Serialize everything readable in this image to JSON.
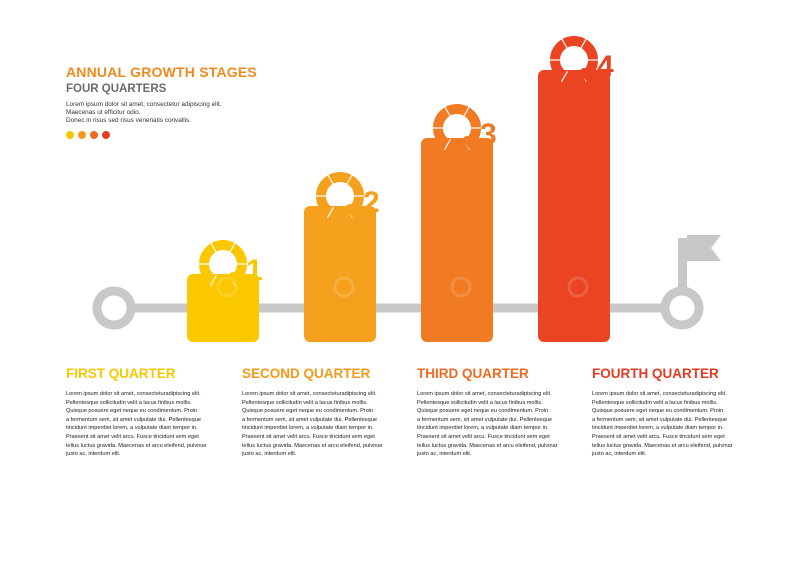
{
  "header": {
    "title": "ANNUAL GROWTH STAGES",
    "subtitle": "FOUR QUARTERS",
    "intro_lines": [
      "Lorem ipsum dolor sit amet, consectetur adipiscing elit.",
      "Maecenas ut efficitur odio.",
      "Donec in risus sed risus venenatis convallis."
    ],
    "dot_colors": [
      "#f6c800",
      "#f39a1c",
      "#ef6b23",
      "#e53a23"
    ]
  },
  "chart_data": {
    "type": "bar",
    "title": "ANNUAL GROWTH STAGES",
    "subtitle": "FOUR QUARTERS",
    "categories": [
      "Q1",
      "Q2",
      "Q3",
      "Q4"
    ],
    "values": [
      1,
      2,
      3,
      4
    ],
    "colors": [
      "#fbc800",
      "#f6a11e",
      "#f07b22",
      "#ea4423"
    ],
    "bar_labels": [
      {
        "letter": "Q",
        "number": "1"
      },
      {
        "letter": "Q",
        "number": "2"
      },
      {
        "letter": "Q",
        "number": "3"
      },
      {
        "letter": "Q",
        "number": "4"
      }
    ],
    "xlabel": "",
    "ylabel": "",
    "grid": false,
    "legend": "none",
    "timeline_color": "#c8c8c8"
  },
  "quarters": [
    {
      "title": "FIRST QUARTER",
      "color": "#f6c800",
      "lines": [
        "Lorem ipsum dolor sit amet, consecteturadipiscing elit.",
        "Pellentesque sollicitudin velit a lacus finibus mollis.",
        "Quisque posuere eget neque eu condimentum. Proin",
        "a fermentum sem, sit amet vulputate dui. Pellentesque",
        " tincidunt imperdiet lorem, a vulputate diam tempor in.",
        "Praesent sit amet velit arcu. Fusce tincidunt sem eget",
        "tellus luctus gravida. Maecenas et arcu eleifend, pulvinar",
        "justo ac, interdum elit."
      ]
    },
    {
      "title": "SECOND QUARTER",
      "color": "#f39a1c",
      "lines": [
        "Lorem ipsum dolor sit amet, consecteturadipiscing elit.",
        "Pellentesque sollicitudin velit a lacus finibus mollis.",
        "Quisque posuere eget neque eu condimentum. Proin",
        "a fermentum sem, sit amet vulputate dui. Pellentesque",
        " tincidunt imperdiet lorem, a vulputate diam tempor in.",
        "Praesent sit amet velit arcu. Fusce tincidunt sem eget",
        "tellus luctus gravida. Maecenas et arcu eleifend, pulvinar",
        "justo ac, interdum elit."
      ]
    },
    {
      "title": "THIRD QUARTER",
      "color": "#ef6b23",
      "lines": [
        "Lorem ipsum dolor sit amet, consecteturadipiscing elit.",
        "Pellentesque sollicitudin velit a lacus finibus mollis.",
        "Quisque posuere eget neque eu condimentum. Proin",
        "a fermentum sem, sit amet vulputate dui. Pellentesque",
        " tincidunt imperdiet lorem, a vulputate diam tempor in.",
        "Praesent sit amet velit arcu. Fusce tincidunt sem eget",
        "tellus luctus gravida. Maecenas et arcu eleifend, pulvinar",
        "justo ac, interdum elit."
      ]
    },
    {
      "title": "FOURTH QUARTER",
      "color": "#e53a23",
      "lines": [
        "Lorem ipsum dolor sit amet, consecteturadipiscing elit.",
        "Pellentesque sollicitudin velit a lacus finibus mollis.",
        "Quisque posuere eget neque eu condimentum. Proin",
        "a fermentum sem, sit amet vulputate dui. Pellentesque",
        " tincidunt imperdiet lorem, a vulputate diam tempor in.",
        "Praesent sit amet velit arcu. Fusce tincidunt sem eget",
        "tellus luctus gravida. Maecenas et arcu eleifend, pulvinar",
        "justo ac, interdum elit."
      ]
    }
  ]
}
